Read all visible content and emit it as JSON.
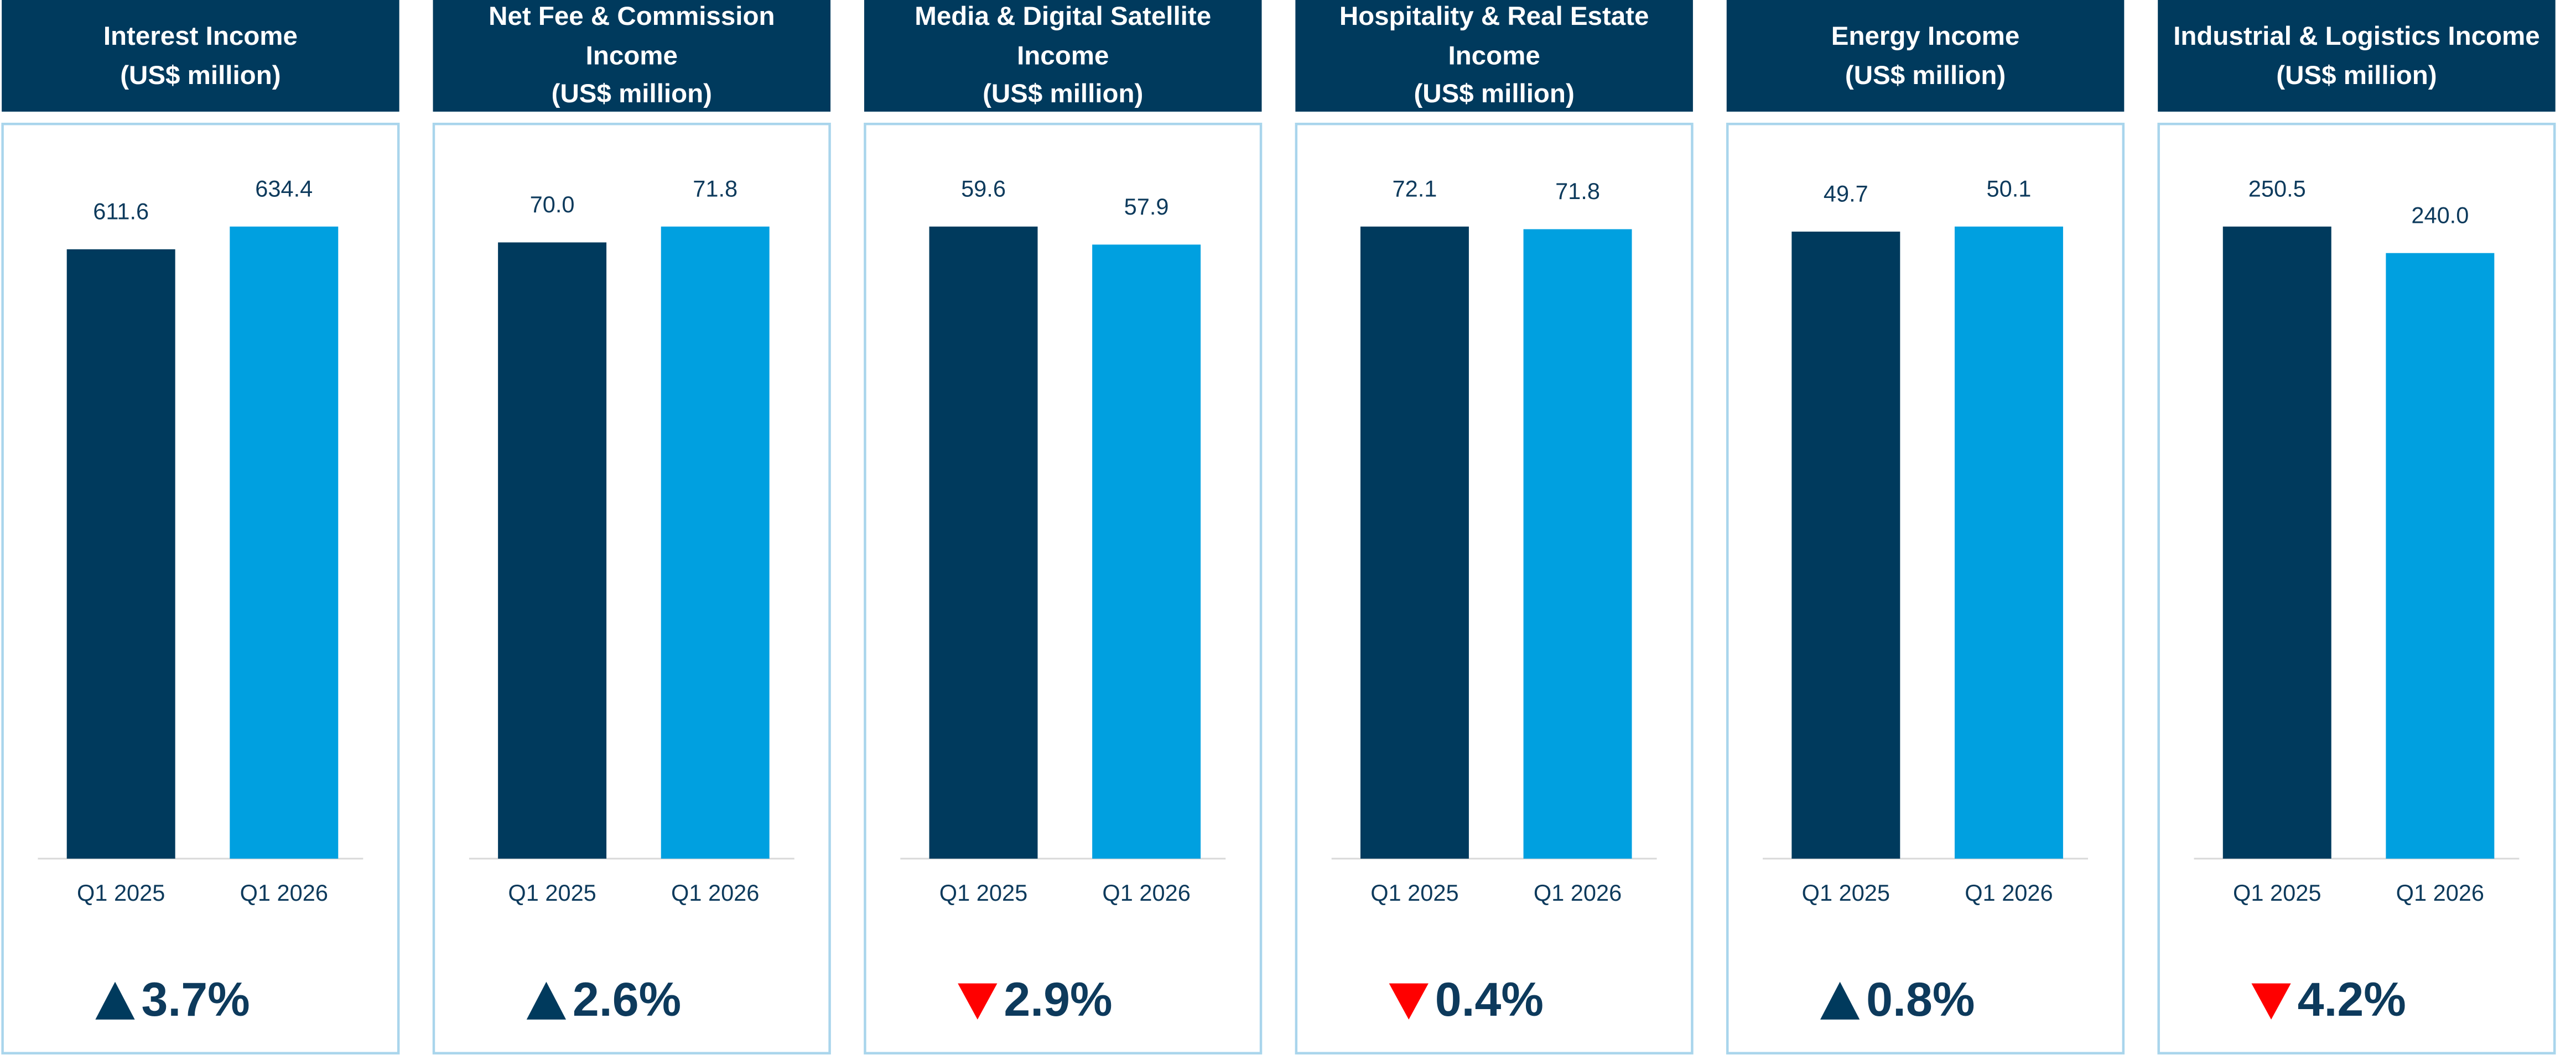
{
  "chart_data": [
    {
      "type": "bar",
      "title": [
        "Interest Income",
        "(US$ million)"
      ],
      "categories": [
        "Q1 2025",
        "Q1 2026"
      ],
      "values": [
        611.6,
        634.4
      ],
      "value_labels": [
        "611.6",
        "634.4"
      ],
      "colors": [
        "#003a5d",
        "#00a0e0"
      ],
      "change": "3.7%",
      "direction": "up"
    },
    {
      "type": "bar",
      "title": [
        "Net Fee & Commission",
        "Income",
        "(US$ million)"
      ],
      "categories": [
        "Q1 2025",
        "Q1 2026"
      ],
      "values": [
        70.0,
        71.8
      ],
      "value_labels": [
        "70.0",
        "71.8"
      ],
      "colors": [
        "#003a5d",
        "#00a0e0"
      ],
      "change": "2.6%",
      "direction": "up"
    },
    {
      "type": "bar",
      "title": [
        "Media & Digital Satellite",
        "Income",
        "(US$ million)"
      ],
      "categories": [
        "Q1 2025",
        "Q1 2026"
      ],
      "values": [
        59.6,
        57.9
      ],
      "value_labels": [
        "59.6",
        "57.9"
      ],
      "colors": [
        "#003a5d",
        "#00a0e0"
      ],
      "change": "2.9%",
      "direction": "down"
    },
    {
      "type": "bar",
      "title": [
        "Hospitality & Real Estate",
        "Income",
        "(US$ million)"
      ],
      "categories": [
        "Q1 2025",
        "Q1 2026"
      ],
      "values": [
        72.1,
        71.8
      ],
      "value_labels": [
        "72.1",
        "71.8"
      ],
      "colors": [
        "#003a5d",
        "#00a0e0"
      ],
      "change": "0.4%",
      "direction": "down"
    },
    {
      "type": "bar",
      "title": [
        "Energy Income",
        "(US$ million)"
      ],
      "categories": [
        "Q1 2025",
        "Q1 2026"
      ],
      "values": [
        49.7,
        50.1
      ],
      "value_labels": [
        "49.7",
        "50.1"
      ],
      "colors": [
        "#003a5d",
        "#00a0e0"
      ],
      "change": "0.8%",
      "direction": "up"
    },
    {
      "type": "bar",
      "title": [
        "Industrial & Logistics Income",
        "(US$ million)"
      ],
      "categories": [
        "Q1 2025",
        "Q1 2026"
      ],
      "values": [
        250.5,
        240.0
      ],
      "value_labels": [
        "250.5",
        "240.0"
      ],
      "colors": [
        "#003a5d",
        "#00a0e0"
      ],
      "change": "4.2%",
      "direction": "down"
    }
  ]
}
